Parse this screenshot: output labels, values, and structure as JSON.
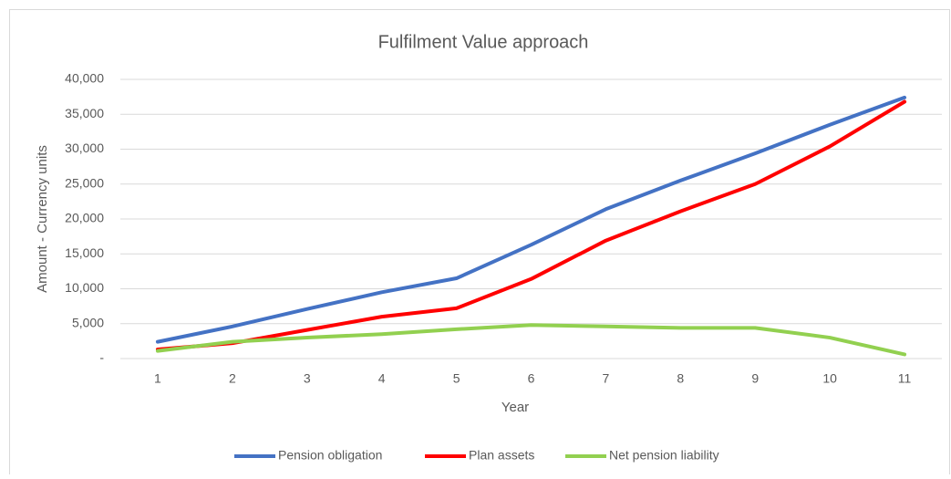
{
  "chart_data": {
    "type": "line",
    "title": "Fulfilment Value approach",
    "x_label": "Year",
    "y_label": "Amount - Currency units",
    "categories": [
      "1",
      "2",
      "3",
      "4",
      "5",
      "6",
      "7",
      "8",
      "9",
      "10",
      "11"
    ],
    "series": [
      {
        "name": "Pension obligation",
        "color": "#4472c4",
        "values": [
          2400,
          4600,
          7100,
          9500,
          11500,
          16300,
          21400,
          25500,
          29400,
          33500,
          37400
        ]
      },
      {
        "name": "Plan assets",
        "color": "#ff0000",
        "values": [
          1300,
          2200,
          4100,
          6000,
          7200,
          11400,
          16900,
          21100,
          25000,
          30400,
          36800
        ]
      },
      {
        "name": "Net pension liability",
        "color": "#92d050",
        "values": [
          1100,
          2400,
          3000,
          3500,
          4200,
          4800,
          4600,
          4400,
          4400,
          3000,
          600
        ]
      }
    ],
    "ylim": [
      0,
      40000
    ],
    "yticks": [
      {
        "value": 0,
        "label": "-"
      },
      {
        "value": 5000,
        "label": "5,000"
      },
      {
        "value": 10000,
        "label": "10,000"
      },
      {
        "value": 15000,
        "label": "15,000"
      },
      {
        "value": 20000,
        "label": "20,000"
      },
      {
        "value": 25000,
        "label": "25,000"
      },
      {
        "value": 30000,
        "label": "30,000"
      },
      {
        "value": 35000,
        "label": "35,000"
      },
      {
        "value": 40000,
        "label": "40,000"
      }
    ],
    "grid": true,
    "legend": "bottom"
  }
}
